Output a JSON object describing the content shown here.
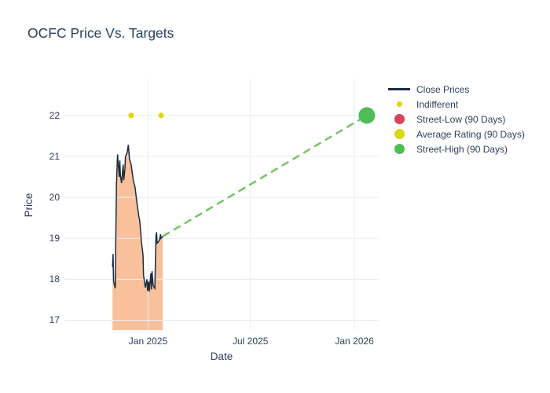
{
  "title": "OCFC Price Vs. Targets",
  "colors": {
    "text": "#2a3f5f",
    "grid": "#e7ecf6",
    "close_line": "#1c2b40",
    "area_fill": "#f9c19b",
    "indifferent": "#e0d506",
    "street_low": "#d5455a",
    "average_rating": "#dcd60a",
    "street_high": "#4fbc56",
    "projection": "#6ec35e",
    "background": "#ffffff"
  },
  "legend": {
    "items": [
      {
        "label": "Close Prices",
        "marker": "line",
        "color": "#1c2b40",
        "size": 0
      },
      {
        "label": "Indifferent",
        "marker": "dot",
        "color": "#e0d506",
        "size": 7
      },
      {
        "label": "Street-Low (90 Days)",
        "marker": "dot",
        "color": "#d5455a",
        "size": 13
      },
      {
        "label": "Average Rating (90 Days)",
        "marker": "dot",
        "color": "#dcd60a",
        "size": 13
      },
      {
        "label": "Street-High (90 Days)",
        "marker": "dot",
        "color": "#4fbc56",
        "size": 13
      }
    ]
  },
  "chart_data": {
    "type": "line",
    "title": "OCFC Price Vs. Targets",
    "xlabel": "Date",
    "ylabel": "Price",
    "grid": true,
    "legend_position": "right",
    "x_axis": {
      "range": [
        "2024-08-06",
        "2026-02-13"
      ],
      "ticks": [
        {
          "label": "Jan 2025",
          "value": "2025-01-01"
        },
        {
          "label": "Jul 2025",
          "value": "2025-07-01"
        },
        {
          "label": "Jan 2026",
          "value": "2026-01-01"
        }
      ]
    },
    "y_axis": {
      "range": [
        16.76,
        22.9
      ],
      "ticks": [
        17,
        18,
        19,
        20,
        21,
        22
      ]
    },
    "series": [
      {
        "name": "Close Prices",
        "type": "area-line",
        "color": "#1c2b40",
        "fill_color": "#f9c19b",
        "points": [
          [
            "2024-10-30",
            18.3
          ],
          [
            "2024-10-31",
            18.62
          ],
          [
            "2024-11-01",
            17.95
          ],
          [
            "2024-11-04",
            17.78
          ],
          [
            "2024-11-05",
            19.2
          ],
          [
            "2024-11-06",
            20.3
          ],
          [
            "2024-11-08",
            21.05
          ],
          [
            "2024-11-11",
            20.5
          ],
          [
            "2024-11-12",
            20.9
          ],
          [
            "2024-11-13",
            20.55
          ],
          [
            "2024-11-15",
            20.35
          ],
          [
            "2024-11-18",
            20.8
          ],
          [
            "2024-11-19",
            20.42
          ],
          [
            "2024-11-21",
            20.7
          ],
          [
            "2024-11-22",
            21.0
          ],
          [
            "2024-11-25",
            21.1
          ],
          [
            "2024-11-27",
            21.28
          ],
          [
            "2024-11-29",
            20.95
          ],
          [
            "2024-12-02",
            20.8
          ],
          [
            "2024-12-04",
            20.6
          ],
          [
            "2024-12-06",
            20.4
          ],
          [
            "2024-12-09",
            20.25
          ],
          [
            "2024-12-11",
            20.0
          ],
          [
            "2024-12-13",
            19.8
          ],
          [
            "2024-12-16",
            19.5
          ],
          [
            "2024-12-17",
            19.45
          ],
          [
            "2024-12-19",
            19.15
          ],
          [
            "2024-12-20",
            18.95
          ],
          [
            "2024-12-23",
            18.6
          ],
          [
            "2024-12-24",
            18.1
          ],
          [
            "2024-12-27",
            17.8
          ],
          [
            "2024-12-30",
            18.0
          ],
          [
            "2024-12-31",
            17.72
          ],
          [
            "2025-01-02",
            17.95
          ],
          [
            "2025-01-03",
            17.7
          ],
          [
            "2025-01-06",
            18.15
          ],
          [
            "2025-01-07",
            17.75
          ],
          [
            "2025-01-08",
            18.2
          ],
          [
            "2025-01-10",
            17.85
          ],
          [
            "2025-01-13",
            17.78
          ],
          [
            "2025-01-14",
            18.4
          ],
          [
            "2025-01-15",
            19.05
          ],
          [
            "2025-01-16",
            19.15
          ],
          [
            "2025-01-17",
            18.88
          ],
          [
            "2025-01-21",
            18.95
          ],
          [
            "2025-01-23",
            19.1
          ],
          [
            "2025-01-24",
            19.0
          ],
          [
            "2025-01-27",
            19.05
          ]
        ]
      },
      {
        "name": "Projection",
        "type": "dashed-line",
        "color": "#6ec35e",
        "points": [
          [
            "2025-01-27",
            19.05
          ],
          [
            "2026-01-23",
            22.0
          ]
        ]
      },
      {
        "name": "Indifferent",
        "type": "scatter",
        "color": "#e0d506",
        "marker_size": 7,
        "points": [
          [
            "2024-12-02",
            22.0
          ],
          [
            "2025-01-24",
            22.0
          ]
        ]
      },
      {
        "name": "Street-Low (90 Days)",
        "type": "scatter",
        "color": "#d5455a",
        "marker_size": 13,
        "points": []
      },
      {
        "name": "Average Rating (90 Days)",
        "type": "scatter",
        "color": "#dcd60a",
        "marker_size": 13,
        "points": []
      },
      {
        "name": "Street-High (90 Days)",
        "type": "scatter",
        "color": "#4fbc56",
        "marker_size": 21,
        "points": [
          [
            "2026-01-23",
            22.0
          ]
        ]
      }
    ]
  }
}
